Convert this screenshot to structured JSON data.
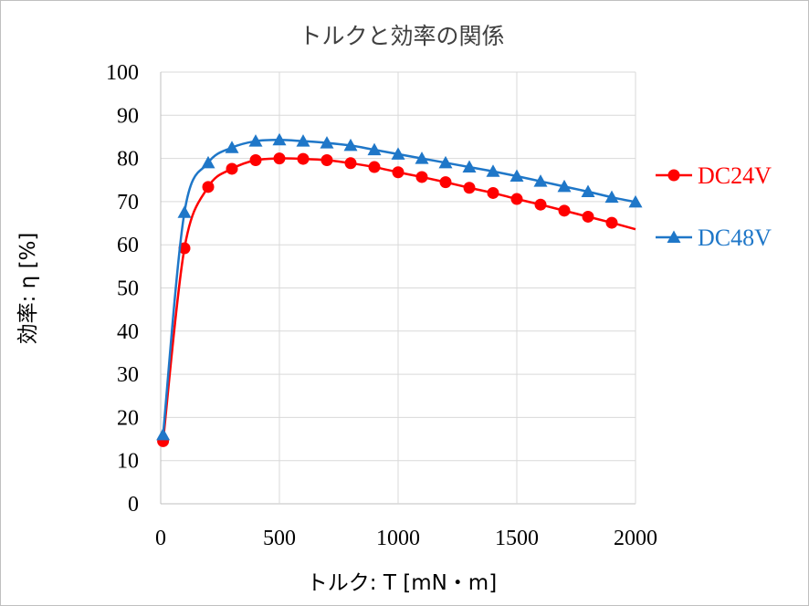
{
  "chart_data": {
    "type": "line",
    "title": "トルクと効率の関係",
    "xlabel": "トルク: T [mN・m]",
    "ylabel": "効率: η [%]",
    "xlim": [
      0,
      2000
    ],
    "ylim": [
      0,
      100
    ],
    "xticks": [
      0,
      500,
      1000,
      1500,
      2000
    ],
    "yticks": [
      0,
      10,
      20,
      30,
      40,
      50,
      60,
      70,
      80,
      90,
      100
    ],
    "grid": "vertical and horizontal",
    "legend": "right",
    "series": [
      {
        "name": "DC24V",
        "color": "#ff0000",
        "marker": "circle",
        "x": [
          10,
          100,
          200,
          300,
          400,
          500,
          600,
          700,
          800,
          900,
          1000,
          1100,
          1200,
          1300,
          1400,
          1500,
          1600,
          1700,
          1800,
          1900
        ],
        "y": [
          14.5,
          59.2,
          73.4,
          77.6,
          79.6,
          80.0,
          79.9,
          79.6,
          78.9,
          78.0,
          76.8,
          75.7,
          74.5,
          73.2,
          72.0,
          70.6,
          69.3,
          67.9,
          66.5,
          65.1
        ],
        "line_end": [
          2000,
          63.6
        ]
      },
      {
        "name": "DC48V",
        "color": "#1f77c8",
        "marker": "triangle",
        "x": [
          10,
          100,
          200,
          300,
          400,
          500,
          600,
          700,
          800,
          900,
          1000,
          1100,
          1200,
          1300,
          1400,
          1500,
          1600,
          1700,
          1800,
          1900,
          2000
        ],
        "y": [
          16.0,
          67.5,
          79.0,
          82.5,
          84.0,
          84.3,
          84.0,
          83.6,
          83.0,
          82.0,
          81.0,
          80.0,
          79.0,
          78.0,
          77.0,
          75.9,
          74.7,
          73.5,
          72.3,
          71.0,
          69.9
        ]
      }
    ]
  }
}
